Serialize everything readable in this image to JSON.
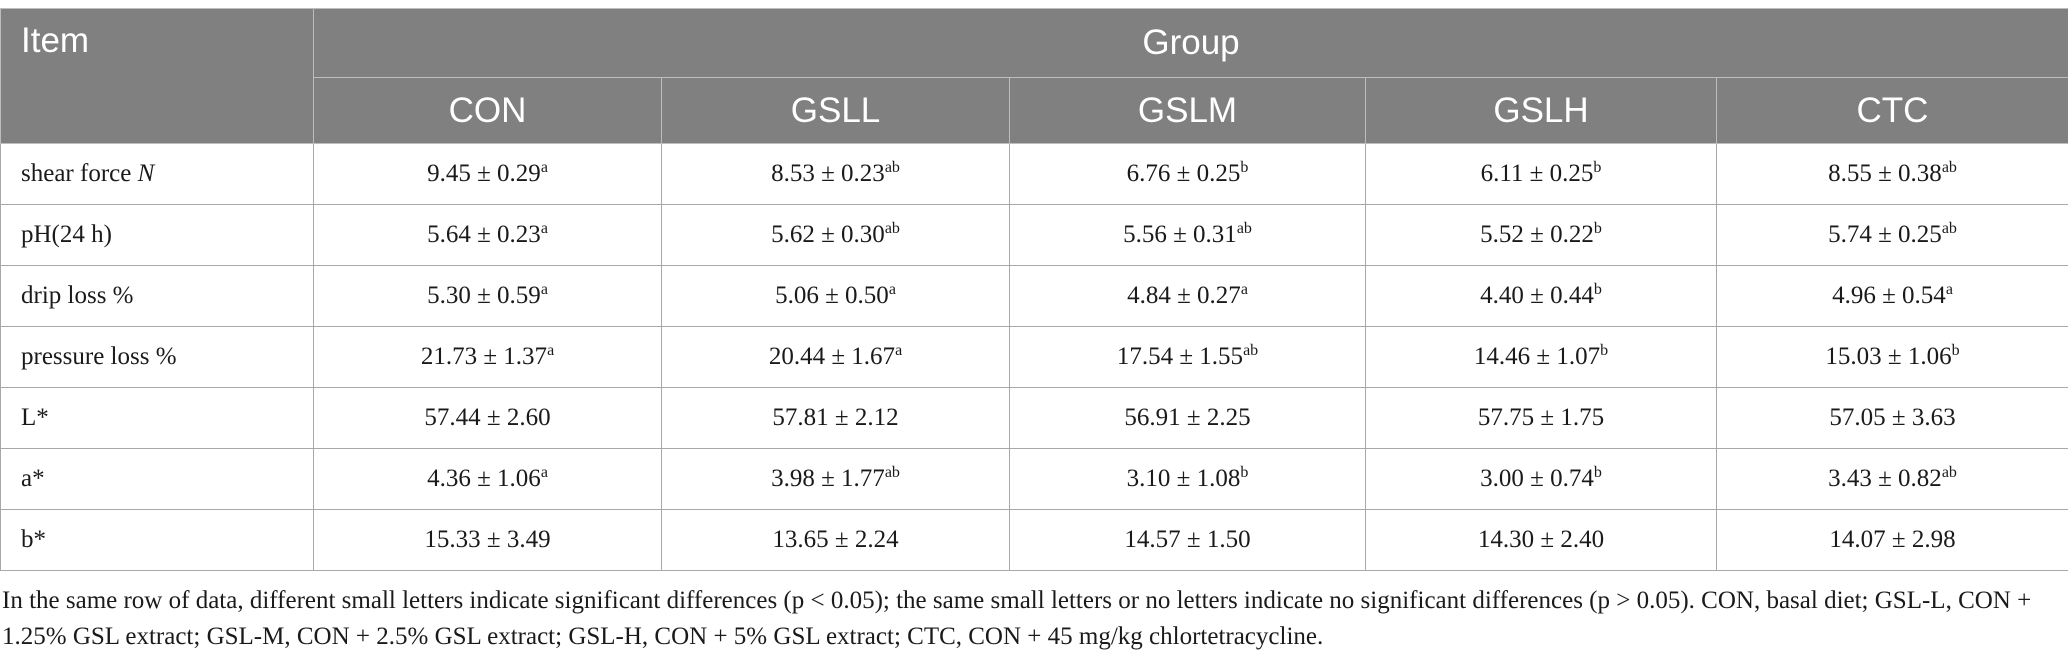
{
  "header": {
    "item": "Item",
    "group": "Group",
    "columns": [
      "CON",
      "GSLL",
      "GSLM",
      "GSLH",
      "CTC"
    ]
  },
  "rows": [
    {
      "label": "shear force",
      "unit": "N",
      "cells": [
        {
          "value": "9.45 ± 0.29",
          "sup": "a"
        },
        {
          "value": "8.53 ± 0.23",
          "sup": "ab"
        },
        {
          "value": "6.76 ± 0.25",
          "sup": "b"
        },
        {
          "value": "6.11 ± 0.25",
          "sup": "b"
        },
        {
          "value": "8.55 ± 0.38",
          "sup": "ab"
        }
      ]
    },
    {
      "label": "pH(24 h)",
      "unit": "",
      "cells": [
        {
          "value": "5.64 ± 0.23",
          "sup": "a"
        },
        {
          "value": "5.62 ± 0.30",
          "sup": "ab"
        },
        {
          "value": "5.56 ± 0.31",
          "sup": "ab"
        },
        {
          "value": "5.52 ± 0.22",
          "sup": "b"
        },
        {
          "value": "5.74 ± 0.25",
          "sup": "ab"
        }
      ]
    },
    {
      "label": "drip loss %",
      "unit": "",
      "cells": [
        {
          "value": "5.30 ± 0.59",
          "sup": "a"
        },
        {
          "value": "5.06 ± 0.50",
          "sup": "a"
        },
        {
          "value": "4.84 ± 0.27",
          "sup": "a"
        },
        {
          "value": "4.40 ± 0.44",
          "sup": "b"
        },
        {
          "value": "4.96 ± 0.54",
          "sup": "a"
        }
      ]
    },
    {
      "label": "pressure loss %",
      "unit": "",
      "cells": [
        {
          "value": "21.73 ± 1.37",
          "sup": "a"
        },
        {
          "value": "20.44 ± 1.67",
          "sup": "a"
        },
        {
          "value": "17.54 ± 1.55",
          "sup": "ab"
        },
        {
          "value": "14.46 ± 1.07",
          "sup": "b"
        },
        {
          "value": "15.03 ± 1.06",
          "sup": "b"
        }
      ]
    },
    {
      "label": "L*",
      "unit": "",
      "cells": [
        {
          "value": "57.44 ± 2.60",
          "sup": ""
        },
        {
          "value": "57.81 ± 2.12",
          "sup": ""
        },
        {
          "value": "56.91 ± 2.25",
          "sup": ""
        },
        {
          "value": "57.75 ± 1.75",
          "sup": ""
        },
        {
          "value": "57.05 ± 3.63",
          "sup": ""
        }
      ]
    },
    {
      "label": "a*",
      "unit": "",
      "cells": [
        {
          "value": "4.36 ± 1.06",
          "sup": "a"
        },
        {
          "value": "3.98 ± 1.77",
          "sup": "ab"
        },
        {
          "value": "3.10 ± 1.08",
          "sup": "b"
        },
        {
          "value": "3.00 ± 0.74",
          "sup": "b"
        },
        {
          "value": "3.43 ± 0.82",
          "sup": "ab"
        }
      ]
    },
    {
      "label": "b*",
      "unit": "",
      "cells": [
        {
          "value": "15.33 ± 3.49",
          "sup": ""
        },
        {
          "value": "13.65 ± 2.24",
          "sup": ""
        },
        {
          "value": "14.57 ± 1.50",
          "sup": ""
        },
        {
          "value": "14.30 ± 2.40",
          "sup": ""
        },
        {
          "value": "14.07 ± 2.98",
          "sup": ""
        }
      ]
    }
  ],
  "footnote": "In the same row of data, different small letters indicate significant differences (p < 0.05); the same small letters or no letters indicate no significant differences (p > 0.05). CON, basal diet; GSL-L, CON + 1.25% GSL extract; GSL-M, CON + 2.5% GSL extract; GSL-H, CON + 5% GSL extract; CTC, CON + 45 mg/kg chlortetracycline.",
  "colors": {
    "header_bg": "#808080",
    "header_text": "#ffffff",
    "grid": "#a8a8a8"
  }
}
